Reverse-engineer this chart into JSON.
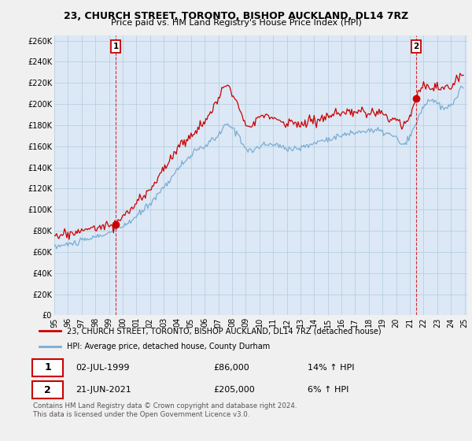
{
  "title": "23, CHURCH STREET, TORONTO, BISHOP AUCKLAND, DL14 7RZ",
  "subtitle": "Price paid vs. HM Land Registry's House Price Index (HPI)",
  "ylabel_ticks": [
    "£0",
    "£20K",
    "£40K",
    "£60K",
    "£80K",
    "£100K",
    "£120K",
    "£140K",
    "£160K",
    "£180K",
    "£200K",
    "£220K",
    "£240K",
    "£260K"
  ],
  "ytick_vals": [
    0,
    20000,
    40000,
    60000,
    80000,
    100000,
    120000,
    140000,
    160000,
    180000,
    200000,
    220000,
    240000,
    260000
  ],
  "ylim": [
    0,
    265000
  ],
  "legend_line1": "23, CHURCH STREET, TORONTO, BISHOP AUCKLAND, DL14 7RZ (detached house)",
  "legend_line2": "HPI: Average price, detached house, County Durham",
  "annotation1_label": "1",
  "annotation1_date": "02-JUL-1999",
  "annotation1_price": "£86,000",
  "annotation1_hpi": "14% ↑ HPI",
  "annotation2_label": "2",
  "annotation2_date": "21-JUN-2021",
  "annotation2_price": "£205,000",
  "annotation2_hpi": "6% ↑ HPI",
  "footer1": "Contains HM Land Registry data © Crown copyright and database right 2024.",
  "footer2": "This data is licensed under the Open Government Licence v3.0.",
  "line_color_red": "#cc0000",
  "line_color_blue": "#7aadd4",
  "bg_color": "#f0f0f0",
  "plot_bg_color": "#dce8f5",
  "grid_color": "#b8cfe0",
  "sale1_x": 1999.5,
  "sale1_y": 86000,
  "sale2_x": 2021.46,
  "sale2_y": 205000,
  "xtick_years": [
    1995,
    1996,
    1997,
    1998,
    1999,
    2000,
    2001,
    2002,
    2003,
    2004,
    2005,
    2006,
    2007,
    2008,
    2009,
    2010,
    2011,
    2012,
    2013,
    2014,
    2015,
    2016,
    2017,
    2018,
    2019,
    2020,
    2021,
    2022,
    2023,
    2024,
    2025
  ]
}
